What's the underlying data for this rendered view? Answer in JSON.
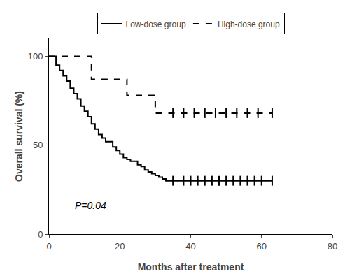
{
  "chart_data": {
    "type": "step",
    "x_label": "Months after treatment",
    "y_label": "Overall survival (%)",
    "series": [
      {
        "name": "Low-dose group",
        "color": "#000000",
        "line_style": "solid",
        "marker": "tick",
        "x": [
          0,
          2,
          3,
          4,
          5,
          6,
          7,
          8,
          9,
          10,
          11,
          12,
          13,
          14,
          15,
          16,
          18,
          19,
          20,
          21,
          22,
          23,
          25,
          26,
          27,
          28,
          29,
          30,
          31,
          32,
          33,
          35,
          63
        ],
        "values": [
          100,
          95,
          92,
          89,
          86,
          82,
          79,
          76,
          72,
          69,
          66,
          62,
          59,
          56,
          54,
          52,
          49,
          47,
          45,
          43,
          42,
          41,
          39,
          38,
          36,
          35,
          34,
          33,
          32,
          31,
          30,
          30,
          30
        ],
        "censor_x": [
          35,
          38,
          40,
          42,
          44,
          46,
          48,
          50,
          52,
          54,
          56,
          58,
          60,
          63
        ],
        "censor_values": [
          30,
          30,
          30,
          30,
          30,
          30,
          30,
          30,
          30,
          30,
          30,
          30,
          30,
          30
        ]
      },
      {
        "name": "High-dose group",
        "color": "#000000",
        "line_style": "dashed",
        "marker": "tick",
        "x": [
          0,
          8,
          12,
          22,
          30,
          63
        ],
        "values": [
          100,
          100,
          87,
          78,
          68,
          68
        ],
        "censor_x": [
          35,
          38,
          41,
          44,
          47,
          50,
          53,
          56,
          59,
          63
        ],
        "censor_values": [
          68,
          68,
          68,
          68,
          68,
          68,
          68,
          68,
          68,
          68
        ]
      }
    ],
    "annotations": [
      {
        "text": "P=0.04",
        "x": 7,
        "y": 12
      }
    ],
    "xlim": [
      0,
      80
    ],
    "ylim": [
      0,
      110
    ],
    "xticks": [
      0,
      20,
      40,
      60,
      80
    ],
    "yticks": [
      0,
      50,
      100
    ],
    "grid": false,
    "legend": "upper center"
  }
}
